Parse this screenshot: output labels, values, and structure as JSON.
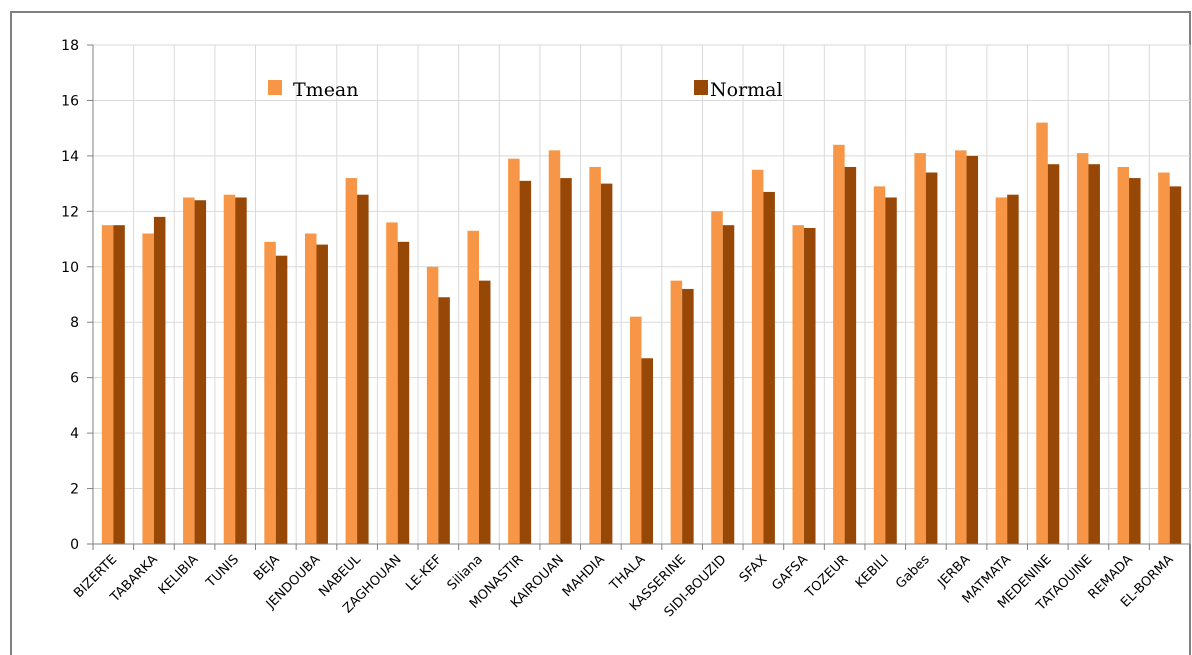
{
  "chart_data": {
    "type": "bar",
    "title": "",
    "xlabel": "",
    "ylabel": "",
    "ylim": [
      0,
      18
    ],
    "yticks": [
      0,
      2,
      4,
      6,
      8,
      10,
      12,
      14,
      16,
      18
    ],
    "grid": true,
    "legend_position": "top",
    "categories": [
      "BIZERTE",
      "TABARKA",
      "KELIBIA",
      "TUNIS",
      "BEJA",
      "JENDOUBA",
      "NABEUL",
      "ZAGHOUAN",
      "LE-KEF",
      "Siliana",
      "MONASTIR",
      "KAIROUAN",
      "MAHDIA",
      "THALA",
      "KASSERINE",
      "SIDI-BOUZID",
      "SFAX",
      "GAFSA",
      "TOZEUR",
      "KEBILI",
      "Gabes",
      "JERBA",
      "MATMATA",
      "MEDENINE",
      "TATAOUINE",
      "REMADA",
      "EL-BORMA"
    ],
    "series": [
      {
        "name": "Tmean",
        "color": "#F79646",
        "values": [
          11.5,
          11.2,
          12.5,
          12.6,
          10.9,
          11.2,
          13.2,
          11.6,
          10.0,
          11.3,
          13.9,
          14.2,
          13.6,
          8.2,
          9.5,
          12.0,
          13.5,
          11.5,
          14.4,
          12.9,
          14.1,
          14.2,
          12.5,
          15.2,
          14.1,
          13.6,
          13.4
        ]
      },
      {
        "name": "Normal",
        "color": "#974706",
        "values": [
          11.5,
          11.8,
          12.4,
          12.5,
          10.4,
          10.8,
          12.6,
          10.9,
          8.9,
          9.5,
          13.1,
          13.2,
          13.0,
          6.7,
          9.2,
          11.5,
          12.7,
          11.4,
          13.6,
          12.5,
          13.4,
          14.0,
          12.6,
          13.7,
          13.7,
          13.2,
          12.9
        ]
      }
    ]
  },
  "colors": {
    "grid": "#D9D9D9",
    "axis": "#808080",
    "border": "#808080"
  }
}
